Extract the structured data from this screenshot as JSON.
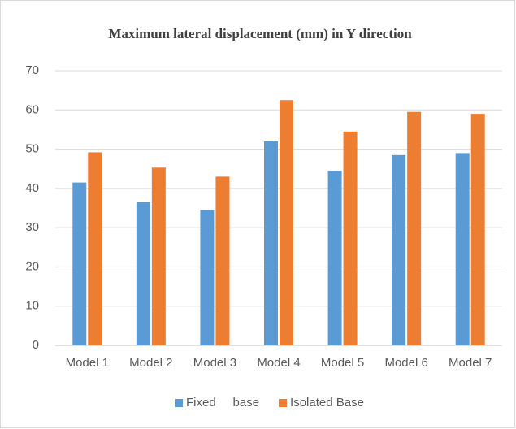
{
  "chart_data": {
    "type": "bar",
    "title": "Maximum lateral displacement (mm) in Y direction",
    "categories": [
      "Model 1",
      "Model 2",
      "Model 3",
      "Model 4",
      "Model 5",
      "Model 6",
      "Model 7"
    ],
    "series": [
      {
        "name": "Fixed     base",
        "color": "#5b9bd5",
        "values": [
          41.5,
          36.5,
          34.5,
          52,
          44.5,
          48.5,
          49
        ]
      },
      {
        "name": "Isolated Base",
        "color": "#ed7d31",
        "values": [
          49.2,
          45.3,
          43,
          62.5,
          54.5,
          59.5,
          59
        ]
      }
    ],
    "ylim": [
      0,
      70
    ],
    "yticks": [
      0,
      10,
      20,
      30,
      40,
      50,
      60,
      70
    ],
    "grid": true,
    "legend": "bottom"
  }
}
